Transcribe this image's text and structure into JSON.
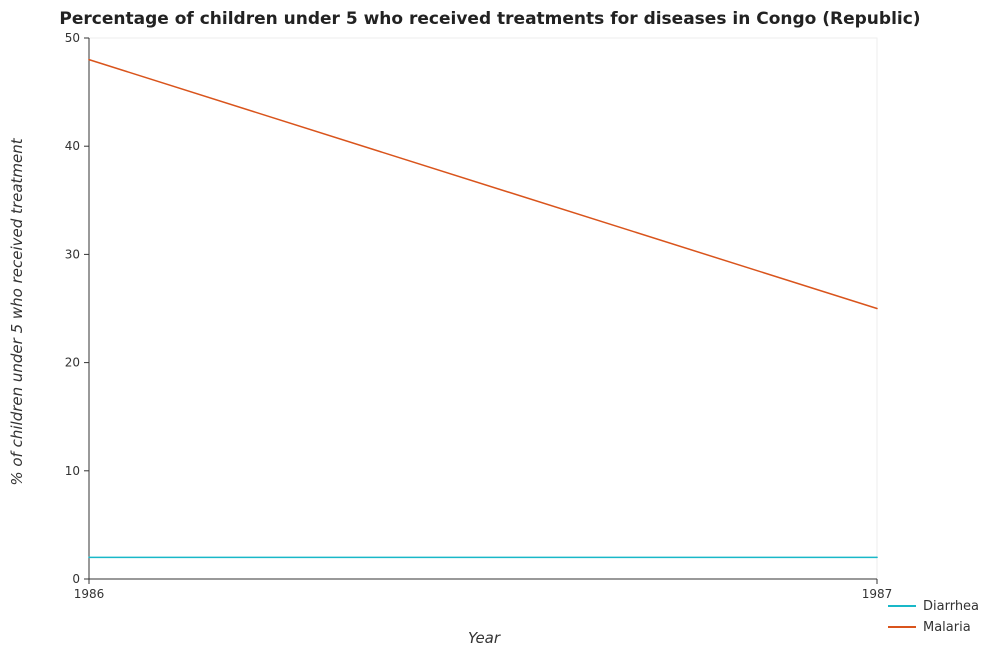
{
  "chart_data": {
    "type": "line",
    "title": "Percentage of children under 5 who received treatments for diseases in Congo (Republic)",
    "xlabel": "Year",
    "ylabel": "% of children under 5 who received treatment",
    "categories": [
      "1986",
      "1987"
    ],
    "ylim": [
      0,
      50
    ],
    "yticks": [
      0,
      10,
      20,
      30,
      40,
      50
    ],
    "grid": false,
    "legend_position": "bottom-right",
    "series": [
      {
        "name": "Diarrhea",
        "values": [
          2,
          2
        ],
        "color": "#19b8c8"
      },
      {
        "name": "Malaria",
        "values": [
          48,
          25
        ],
        "color": "#d9541c"
      }
    ]
  }
}
